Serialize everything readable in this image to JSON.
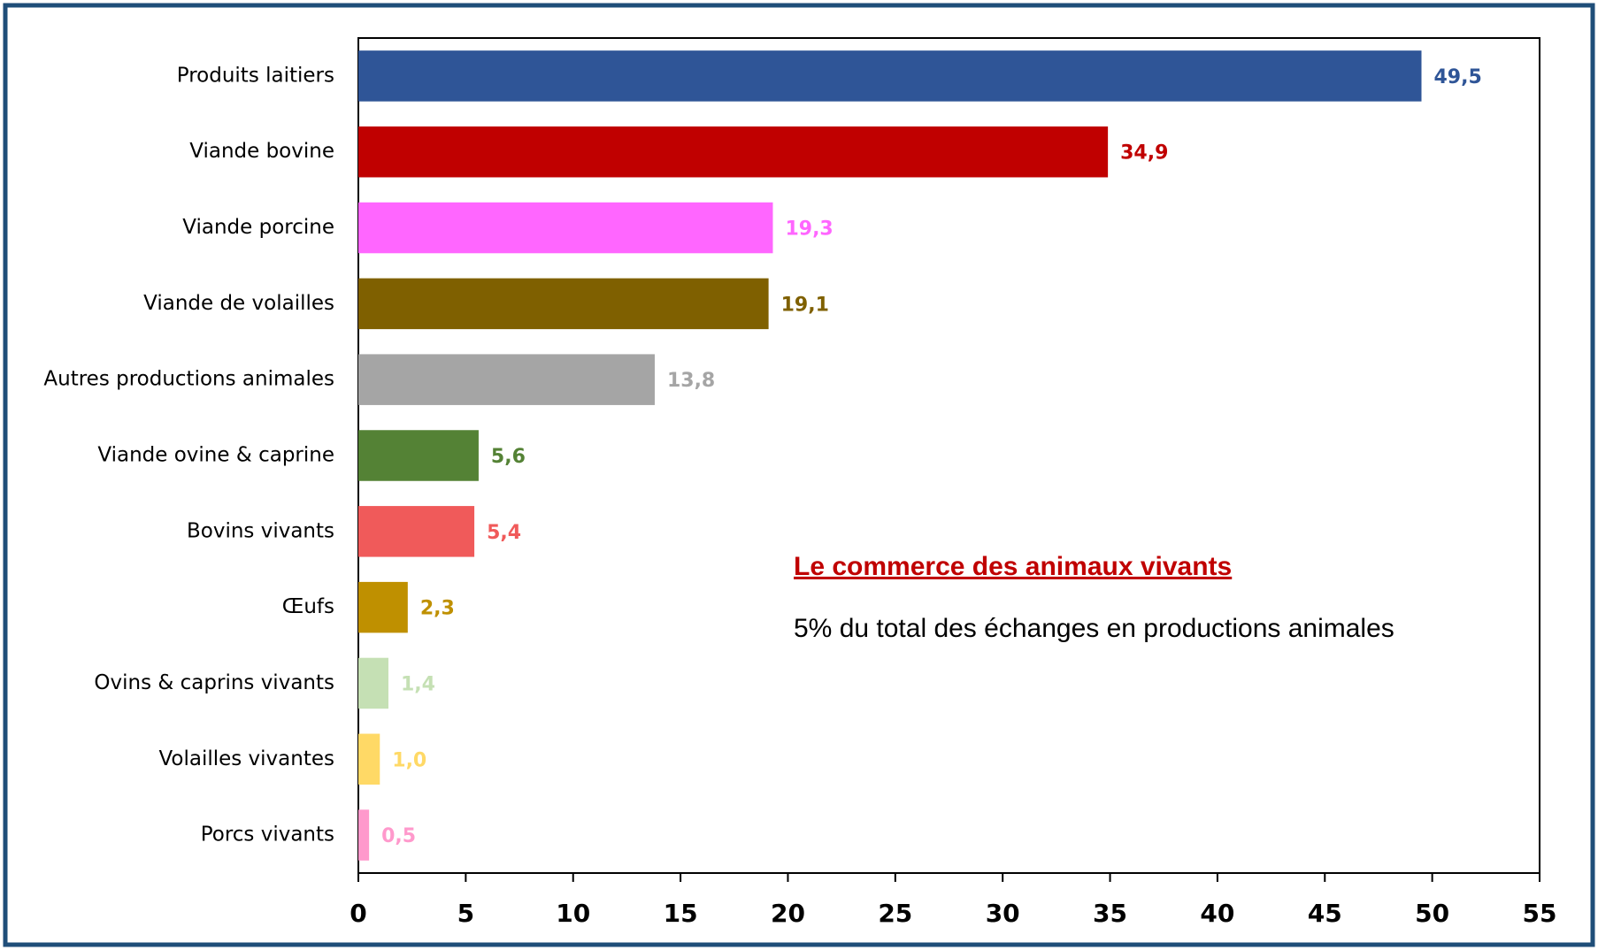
{
  "chart_data": {
    "type": "bar",
    "orientation": "horizontal",
    "categories": [
      "Produits laitiers",
      "Viande bovine",
      "Viande porcine",
      "Viande de volailles",
      "Autres productions animales",
      "Viande ovine & caprine",
      "Bovins vivants",
      "Œufs",
      "Ovins & caprins vivants",
      "Volailles vivantes",
      "Porcs vivants"
    ],
    "values": [
      49.5,
      34.9,
      19.3,
      19.1,
      13.8,
      5.6,
      5.4,
      2.3,
      1.4,
      1.0,
      0.5
    ],
    "value_labels": [
      "49,5",
      "34,9",
      "19,3",
      "19,1",
      "13,8",
      "5,6",
      "5,4",
      "2,3",
      "1,4",
      "1,0",
      "0,5"
    ],
    "colors": [
      "#2f5597",
      "#c00000",
      "#ff66ff",
      "#7f6000",
      "#a5a5a5",
      "#548235",
      "#f05a5a",
      "#bf9000",
      "#c5e0b4",
      "#ffd966",
      "#ff99cc"
    ],
    "xlim": [
      0,
      55
    ],
    "xticks": [
      0,
      5,
      10,
      15,
      20,
      25,
      30,
      35,
      40,
      45,
      50,
      55
    ],
    "annotation_title": "Le commerce des animaux vivants",
    "annotation_text": "5% du total des échanges en productions animales"
  }
}
